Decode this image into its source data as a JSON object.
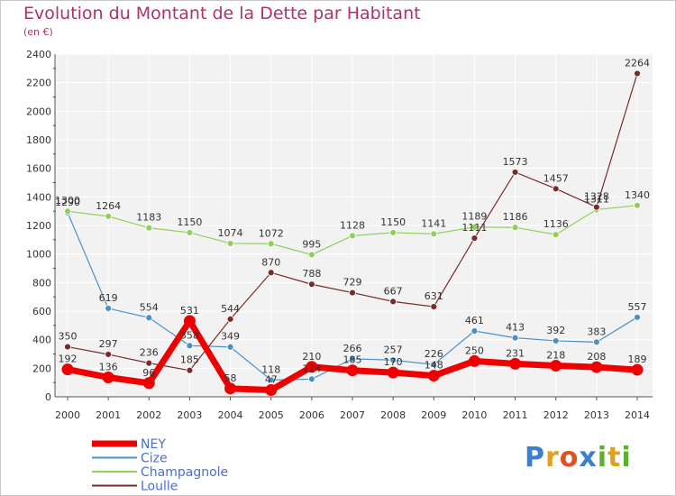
{
  "chart_data": {
    "type": "line",
    "title": "Evolution du Montant de la Dette par Habitant",
    "subtitle": "(en €)",
    "xlabel": "",
    "ylabel": "",
    "ylim": [
      0,
      2400
    ],
    "yticks": [
      0,
      200,
      400,
      600,
      800,
      1000,
      1200,
      1400,
      1600,
      1800,
      2000,
      2200,
      2400
    ],
    "categories": [
      "2000",
      "2001",
      "2002",
      "2003",
      "2004",
      "2005",
      "2006",
      "2007",
      "2008",
      "2009",
      "2010",
      "2011",
      "2012",
      "2013",
      "2014"
    ],
    "series": [
      {
        "name": "Cize",
        "color": "#4a90c8",
        "emphasis": false,
        "values": [
          1290,
          619,
          554,
          358,
          349,
          118,
          124,
          266,
          257,
          226,
          461,
          413,
          392,
          383,
          557
        ]
      },
      {
        "name": "Champagnole",
        "color": "#8fd05a",
        "emphasis": false,
        "values": [
          1300,
          1264,
          1183,
          1150,
          1074,
          1072,
          995,
          1128,
          1150,
          1141,
          1189,
          1186,
          1136,
          1311,
          1340
        ]
      },
      {
        "name": "Loulle",
        "color": "#7a2a2a",
        "emphasis": false,
        "values": [
          350,
          297,
          236,
          185,
          544,
          870,
          788,
          729,
          667,
          631,
          1111,
          1573,
          1457,
          1328,
          2264
        ]
      },
      {
        "name": "NEY",
        "color": "#ee0000",
        "emphasis": true,
        "values": [
          192,
          136,
          96,
          531,
          58,
          47,
          210,
          185,
          170,
          148,
          250,
          231,
          218,
          208,
          189
        ]
      }
    ],
    "legend": [
      "NEY",
      "Cize",
      "Champagnole",
      "Loulle"
    ],
    "legend_position": "bottom-left"
  },
  "logo": {
    "letters": [
      "P",
      "r",
      "o",
      "x",
      "i",
      "t",
      "i"
    ],
    "colors": [
      "#3a7fd0",
      "#e0a020",
      "#e05020",
      "#3a7fd0",
      "#60b030",
      "#e0a020",
      "#60b030"
    ]
  }
}
